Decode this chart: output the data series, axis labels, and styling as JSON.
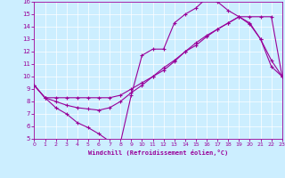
{
  "xlabel": "Windchill (Refroidissement éolien,°C)",
  "bg_color": "#cceeff",
  "line_color": "#990099",
  "xlim": [
    0,
    23
  ],
  "ylim": [
    5,
    16
  ],
  "yticks": [
    5,
    6,
    7,
    8,
    9,
    10,
    11,
    12,
    13,
    14,
    15,
    16
  ],
  "xticks": [
    0,
    1,
    2,
    3,
    4,
    5,
    6,
    7,
    8,
    9,
    10,
    11,
    12,
    13,
    14,
    15,
    16,
    17,
    18,
    19,
    20,
    21,
    22,
    23
  ],
  "line1_x": [
    0,
    1,
    2,
    3,
    4,
    5,
    6,
    7,
    8,
    9,
    10,
    11,
    12,
    13,
    14,
    15,
    16,
    17,
    18,
    19,
    20,
    21,
    22,
    23
  ],
  "line1_y": [
    9.3,
    8.3,
    7.5,
    7.0,
    6.3,
    5.9,
    5.4,
    4.8,
    4.7,
    8.5,
    11.7,
    12.2,
    12.2,
    14.3,
    15.0,
    15.5,
    16.3,
    16.0,
    15.3,
    14.8,
    14.2,
    13.0,
    11.3,
    10.0
  ],
  "line2_x": [
    0,
    1,
    2,
    3,
    4,
    5,
    6,
    7,
    8,
    9,
    10,
    11,
    12,
    13,
    14,
    15,
    16,
    17,
    18,
    19,
    20,
    21,
    22,
    23
  ],
  "line2_y": [
    9.3,
    8.3,
    8.3,
    8.3,
    8.3,
    8.3,
    8.3,
    8.3,
    8.5,
    9.0,
    9.5,
    10.0,
    10.5,
    11.2,
    12.0,
    12.5,
    13.2,
    13.8,
    14.3,
    14.8,
    14.3,
    13.0,
    10.8,
    10.0
  ],
  "line3_x": [
    0,
    1,
    2,
    3,
    4,
    5,
    6,
    7,
    8,
    9,
    10,
    11,
    12,
    13,
    14,
    15,
    16,
    17,
    18,
    19,
    20,
    21,
    22,
    23
  ],
  "line3_y": [
    9.3,
    8.3,
    8.0,
    7.7,
    7.5,
    7.4,
    7.3,
    7.5,
    8.0,
    8.7,
    9.3,
    10.0,
    10.7,
    11.3,
    12.0,
    12.7,
    13.3,
    13.8,
    14.3,
    14.8,
    14.8,
    14.8,
    14.8,
    10.0
  ]
}
